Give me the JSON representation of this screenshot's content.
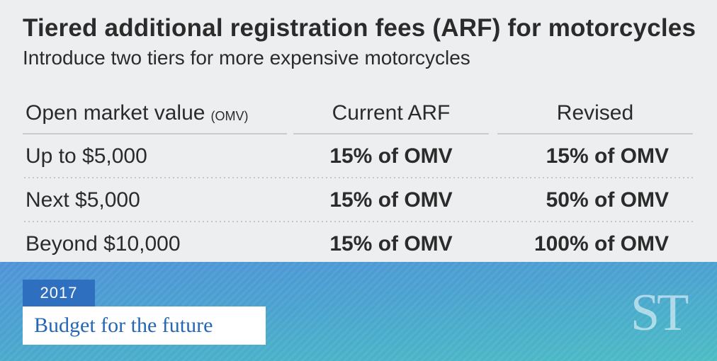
{
  "header": {
    "title": "Tiered additional registration fees (ARF) for motorcycles",
    "subtitle": "Introduce two tiers for more expensive motorcycles"
  },
  "table": {
    "columns": {
      "omv_label": "Open market value",
      "omv_abbr": "(OMV)",
      "current": "Current ARF",
      "revised": "Revised"
    },
    "rows": [
      {
        "tier": "Up to $5,000",
        "current": "15% of OMV",
        "revised": "15% of OMV"
      },
      {
        "tier": "Next $5,000",
        "current": "15% of OMV",
        "revised": "50% of OMV"
      },
      {
        "tier": "Beyond $10,000",
        "current": "15% of OMV",
        "revised": "100% of OMV"
      }
    ]
  },
  "banner": {
    "year": "2017",
    "tagline": "Budget for the future",
    "logo": "ST"
  },
  "colors": {
    "background": "#edeef0",
    "text": "#2b2b2b",
    "year_badge": "#2f6fc0",
    "tagline_text": "#2467b4",
    "banner_gradient_start": "#4f93d8",
    "banner_gradient_end": "#4bbcc4"
  }
}
